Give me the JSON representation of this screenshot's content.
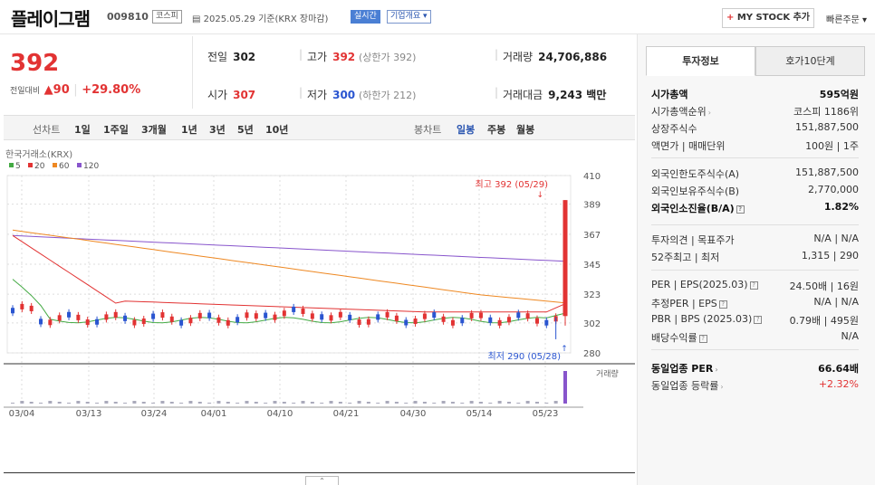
{
  "header": {
    "company_name": "플레이그램",
    "stock_code": "009810",
    "market_tag": "코스피",
    "date_text": "2025.05.29 기준(KRX 장마감)",
    "live_tag": "실시간",
    "company_info_tag": "기업개요 ▾",
    "my_stock_button": "MY STOCK 추가",
    "quick_order": "빠른주문 ▾"
  },
  "price": {
    "current": "392",
    "change_label": "전일대비",
    "change_value": "90",
    "change_pct": "+29.80%"
  },
  "stats": {
    "prev_close_label": "전일",
    "prev_close": "302",
    "high_label": "고가",
    "high": "392",
    "upper_limit": "(상한가 392)",
    "volume_label": "거래량",
    "volume": "24,706,886",
    "open_label": "시가",
    "open": "307",
    "low_label": "저가",
    "low": "300",
    "lower_limit": "(하한가 212)",
    "trade_value_label": "거래대금",
    "trade_value": "9,243 백만"
  },
  "period_tabs": {
    "line_chart": "선차트",
    "line_items": [
      "1일",
      "1주일",
      "3개월",
      "1년",
      "3년",
      "5년",
      "10년"
    ],
    "candle_chart": "봉차트",
    "candle_items": [
      "일봉",
      "주봉",
      "월봉"
    ],
    "active_candle": "일봉"
  },
  "chart_meta": {
    "source_label": "한국거래소(KRX)",
    "ma_legend": [
      {
        "label": "5",
        "color": "#44aa44"
      },
      {
        "label": "20",
        "color": "#e23333"
      },
      {
        "label": "60",
        "color": "#ee8822"
      },
      {
        "label": "120",
        "color": "#8855cc"
      }
    ],
    "max_annotation": "최고 392 (05/29)",
    "min_annotation": "최저 290 (05/28)",
    "volume_label": "거래량"
  },
  "chart_data": {
    "type": "candlestick",
    "x_tick_labels": [
      "03/04",
      "03/13",
      "03/24",
      "04/01",
      "04/10",
      "04/21",
      "04/30",
      "05/14",
      "05/23"
    ],
    "y_tick_labels": [
      "410",
      "389",
      "367",
      "345",
      "323",
      "302",
      "280"
    ],
    "ylim": [
      280,
      410
    ],
    "last_candle": {
      "date": "05/29",
      "open": 307,
      "high": 392,
      "low": 300,
      "close": 392
    },
    "max": {
      "value": 392,
      "date": "05/29"
    },
    "min": {
      "value": 290,
      "date": "05/28"
    },
    "colors": {
      "up": "#e23333",
      "down": "#2a55d0",
      "ma5": "#44aa44",
      "ma20": "#e23333",
      "ma60": "#ee8822",
      "ma120": "#8855cc",
      "volume": "#8855cc"
    }
  },
  "invest_info": {
    "tabs": [
      "투자정보",
      "호가10단계"
    ],
    "active_tab": "투자정보",
    "rows_group1": [
      {
        "k": "시가총액",
        "v": "595억원",
        "bold": true
      },
      {
        "k": "시가총액순위",
        "v": "코스피 1186위"
      },
      {
        "k": "상장주식수",
        "v": "151,887,500"
      },
      {
        "k": "액면가 | 매매단위",
        "v": "100원 | 1주"
      }
    ],
    "rows_group2": [
      {
        "k": "외국인한도주식수(A)",
        "v": "151,887,500"
      },
      {
        "k": "외국인보유주식수(B)",
        "v": "2,770,000"
      },
      {
        "k": "외국인소진율(B/A)",
        "v": "1.82%",
        "bold": true
      }
    ],
    "rows_group3": [
      {
        "k": "투자의견 | 목표주가",
        "v": "N/A | N/A"
      },
      {
        "k": "52주최고 | 최저",
        "v": "1,315 | 290"
      }
    ],
    "rows_group4": [
      {
        "k": "PER | EPS(2025.03)",
        "v": "24.50배 | 16원"
      },
      {
        "k": "추정PER | EPS",
        "v": "N/A | N/A"
      },
      {
        "k": "PBR | BPS (2025.03)",
        "v": "0.79배 | 495원"
      },
      {
        "k": "배당수익률",
        "v": "N/A"
      }
    ],
    "rows_group5": [
      {
        "k": "동일업종 PER",
        "v": "66.64배",
        "bold": true
      },
      {
        "k": "동일업종 등락률",
        "v": "+2.32%",
        "red": true
      }
    ]
  }
}
